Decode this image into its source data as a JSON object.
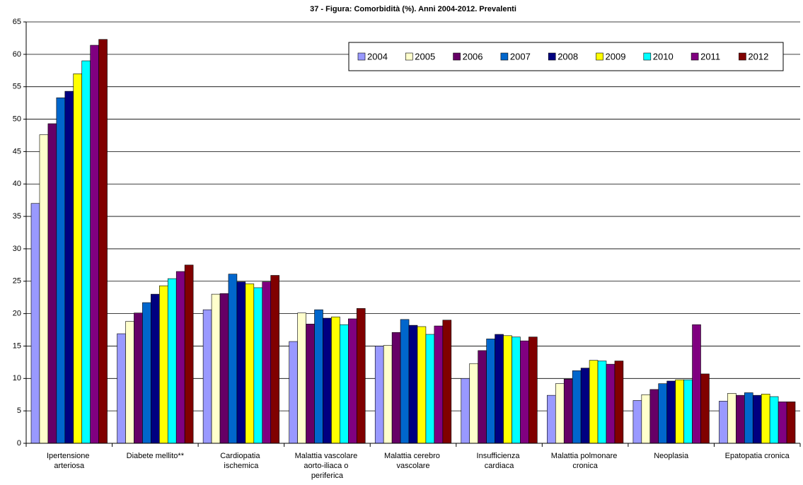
{
  "chart_data": {
    "type": "bar",
    "title": "37 - Figura: Comorbidità (%). Anni 2004-2012. Prevalenti",
    "categories": [
      "Ipertensione arteriosa",
      "Diabete mellito**",
      "Cardiopatia ischemica",
      "Malattia vascolare aorto-iliaca o periferica",
      "Malattia cerebro vascolare",
      "Insufficienza cardiaca",
      "Malattia polmonare cronica",
      "Neoplasia",
      "Epatopatia cronica"
    ],
    "series": [
      {
        "name": "2004",
        "color": "#9999ff",
        "values": [
          37.0,
          16.9,
          20.6,
          15.7,
          15.0,
          10.0,
          7.4,
          6.6,
          6.5
        ]
      },
      {
        "name": "2005",
        "color": "#ffffcc",
        "values": [
          47.6,
          18.8,
          23.0,
          20.1,
          15.1,
          12.3,
          9.2,
          7.5,
          7.7
        ]
      },
      {
        "name": "2006",
        "color": "#660066",
        "values": [
          49.3,
          20.1,
          23.1,
          18.4,
          17.1,
          14.3,
          9.9,
          8.3,
          7.4
        ]
      },
      {
        "name": "2007",
        "color": "#0066cc",
        "values": [
          53.3,
          21.7,
          26.1,
          20.6,
          19.1,
          16.1,
          11.2,
          9.2,
          7.8
        ]
      },
      {
        "name": "2008",
        "color": "#000080",
        "values": [
          54.3,
          23.0,
          24.9,
          19.3,
          18.2,
          16.8,
          11.6,
          9.6,
          7.4
        ]
      },
      {
        "name": "2009",
        "color": "#ffff00",
        "values": [
          57.0,
          24.3,
          24.6,
          19.5,
          18.0,
          16.6,
          12.8,
          9.8,
          7.6
        ]
      },
      {
        "name": "2010",
        "color": "#00ffff",
        "values": [
          59.0,
          25.4,
          24.0,
          18.3,
          16.8,
          16.4,
          12.7,
          9.8,
          7.2
        ]
      },
      {
        "name": "2011",
        "color": "#800080",
        "values": [
          61.4,
          26.5,
          24.9,
          19.2,
          18.1,
          15.8,
          12.2,
          18.3,
          6.4
        ]
      },
      {
        "name": "2012",
        "color": "#800000",
        "values": [
          62.3,
          27.5,
          25.9,
          20.8,
          19.0,
          16.4,
          12.7,
          10.7,
          6.4
        ]
      }
    ],
    "ylim": [
      0,
      65
    ],
    "yticks": [
      0,
      5,
      10,
      15,
      20,
      25,
      30,
      35,
      40,
      45,
      50,
      55,
      60,
      65
    ],
    "grid": true,
    "legend": "top-right"
  }
}
